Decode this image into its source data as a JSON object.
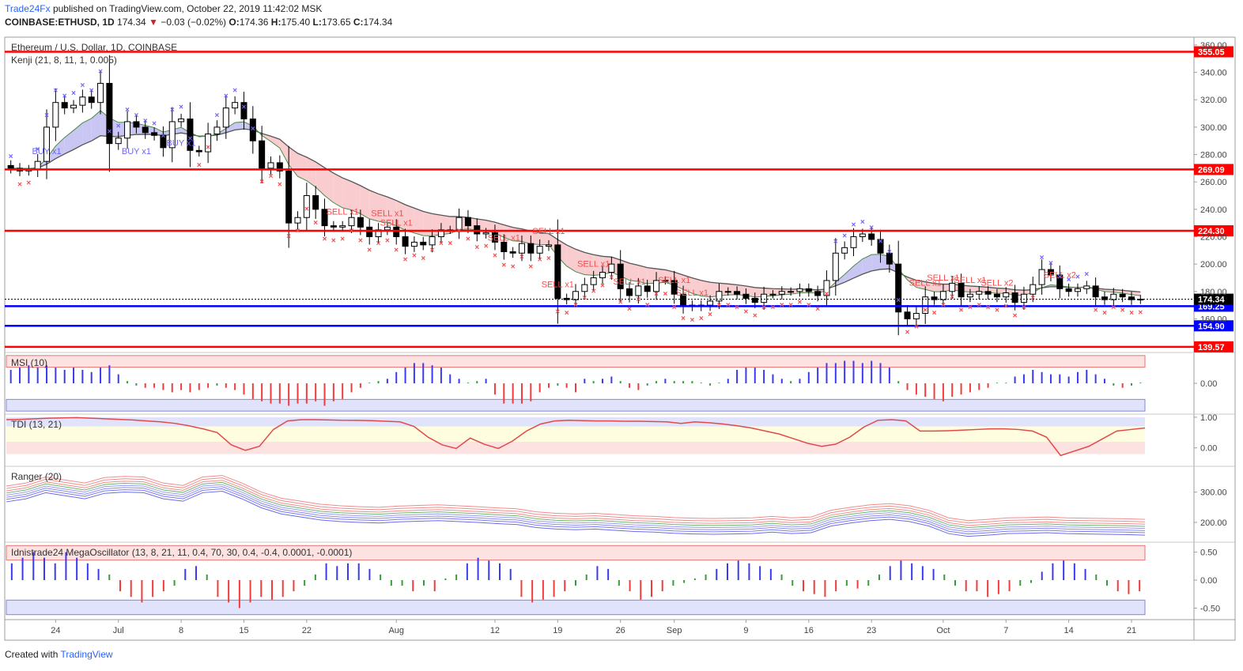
{
  "header": {
    "brand": "Trade24Fx",
    "published": "published on TradingView.com, October 22, 2019 11:42:02 MSK",
    "symbol": "COINBASE:ETHUSD, 1D",
    "last": "174.34",
    "change": "−0.03 (−0.02%)",
    "o_label": "O:",
    "o": "174.36",
    "h_label": "H:",
    "h": "175.40",
    "l_label": "L:",
    "l": "173.65",
    "c_label": "C:",
    "c": "174.34"
  },
  "footer": {
    "created": "Created with",
    "brand": "TradingView"
  },
  "colors": {
    "bull": "#ffffff",
    "bear": "#000000",
    "red_level": "#ff0000",
    "blue_level": "#0000ff",
    "buy": "#6c63ff",
    "sell": "#f44b4b",
    "axis_text": "#444444"
  },
  "chart_data": [
    {
      "type": "candlestick",
      "title": "Ethereum / U.S. Dollar, 1D, COINBASE",
      "indicator_label": "Kenji (21, 8, 11, 1, 0.005)",
      "y_ticks": [
        160,
        180,
        200,
        220,
        240,
        260,
        280,
        300,
        320,
        340,
        360
      ],
      "ylim": [
        136,
        364
      ],
      "x_ticks": [
        {
          "label": "24",
          "i": 5
        },
        {
          "label": "Jul",
          "i": 12
        },
        {
          "label": "8",
          "i": 19
        },
        {
          "label": "15",
          "i": 26
        },
        {
          "label": "22",
          "i": 33
        },
        {
          "label": "Aug",
          "i": 43
        },
        {
          "label": "12",
          "i": 54
        },
        {
          "label": "19",
          "i": 61
        },
        {
          "label": "26",
          "i": 68
        },
        {
          "label": "Sep",
          "i": 74
        },
        {
          "label": "9",
          "i": 82
        },
        {
          "label": "16",
          "i": 89
        },
        {
          "label": "23",
          "i": 96
        },
        {
          "label": "Oct",
          "i": 104
        },
        {
          "label": "7",
          "i": 111
        },
        {
          "label": "14",
          "i": 118
        },
        {
          "label": "21",
          "i": 125
        }
      ],
      "levels": [
        {
          "value": 355.05,
          "label": "355.05",
          "color": "red"
        },
        {
          "value": 269.09,
          "label": "269.09",
          "color": "red"
        },
        {
          "value": 224.3,
          "label": "224.30",
          "color": "red"
        },
        {
          "value": 169.25,
          "label": "169.25",
          "color": "blue"
        },
        {
          "value": 154.9,
          "label": "154.90",
          "color": "blue"
        },
        {
          "value": 139.57,
          "label": "139.57",
          "color": "red"
        }
      ],
      "last_price_label": "174.34",
      "closes": [
        270,
        268,
        269,
        275,
        300,
        318,
        314,
        316,
        322,
        318,
        332,
        288,
        292,
        304,
        300,
        296,
        294,
        285,
        304,
        306,
        283,
        282,
        295,
        300,
        314,
        318,
        306,
        290,
        270,
        274,
        268,
        230,
        234,
        250,
        240,
        228,
        227,
        228,
        234,
        227,
        220,
        225,
        227,
        220,
        213,
        216,
        214,
        220,
        225,
        225,
        234,
        228,
        222,
        223,
        216,
        209,
        208,
        215,
        208,
        213,
        214,
        175,
        174,
        180,
        185,
        190,
        194,
        200,
        182,
        177,
        184,
        180,
        188,
        188,
        178,
        170,
        169,
        170,
        173,
        180,
        180,
        178,
        175,
        172,
        178,
        178,
        180,
        180,
        182,
        180,
        177,
        188,
        208,
        212,
        220,
        222,
        218,
        208,
        200,
        165,
        160,
        164,
        176,
        174,
        180,
        186,
        176,
        178,
        180,
        178,
        176,
        179,
        172,
        178,
        185,
        196,
        192,
        182,
        180,
        182,
        184,
        176,
        174,
        178,
        176,
        174,
        174.34
      ],
      "annotations": [
        {
          "text": "BUY x1",
          "i": 4
        },
        {
          "text": "BUY x1",
          "i": 14
        },
        {
          "text": "BUY x1",
          "i": 19
        },
        {
          "text": "SELL x1",
          "i": 37
        },
        {
          "text": "SELL x1",
          "i": 42
        },
        {
          "text": "SELL x1",
          "i": 43
        },
        {
          "text": "SELL x1",
          "i": 55
        },
        {
          "text": "SELL x1",
          "i": 60
        },
        {
          "text": "SELL x1",
          "i": 61
        },
        {
          "text": "SELL x1",
          "i": 65
        },
        {
          "text": "SELL x1",
          "i": 69
        },
        {
          "text": "SELL x1",
          "i": 74
        },
        {
          "text": "SELL x1",
          "i": 76
        },
        {
          "text": "SELL x1",
          "i": 102
        },
        {
          "text": "SELL x1",
          "i": 104
        },
        {
          "text": "SELL x1",
          "i": 107
        },
        {
          "text": "SELL x2",
          "i": 110
        },
        {
          "text": "SELL x2",
          "i": 117
        }
      ]
    },
    {
      "type": "bar",
      "title": "MSI (10)",
      "y_ticks": [
        0
      ],
      "tick_labels": [
        "0.00"
      ],
      "ylim": [
        -1.3,
        1.3
      ],
      "values": [
        0.6,
        0.7,
        0.8,
        0.7,
        0.8,
        0.7,
        0.6,
        0.7,
        0.6,
        0.5,
        0.7,
        0.8,
        0.4,
        0.1,
        -0.1,
        -0.2,
        -0.2,
        -0.3,
        -0.4,
        -0.3,
        -0.4,
        -0.3,
        -0.2,
        -0.1,
        -0.2,
        -0.3,
        -0.5,
        -0.7,
        -0.8,
        -0.9,
        -0.9,
        -1.0,
        -0.9,
        -0.9,
        -0.8,
        -1.0,
        -0.8,
        -0.7,
        -0.4,
        -0.2,
        0,
        0.1,
        0.2,
        0.5,
        0.7,
        0.9,
        0.9,
        0.8,
        0.7,
        0.4,
        0.2,
        0,
        0.1,
        0.2,
        -0.5,
        -0.9,
        -0.9,
        -0.9,
        -0.8,
        -0.4,
        -0.2,
        -0.1,
        -0.2,
        -0.4,
        0.2,
        0.1,
        0.2,
        0.3,
        0.1,
        -0.2,
        -0.3,
        -0.1,
        0.1,
        0.2,
        0.1,
        0.1,
        0.1,
        0.0,
        -0.1,
        0,
        0.2,
        0.6,
        0.7,
        0.7,
        0.6,
        0.4,
        0.2,
        0.1,
        0.2,
        0.5,
        0.7,
        0.9,
        0.9,
        1.0,
        1.0,
        0.9,
        1.0,
        0.9,
        0.7,
        0.1,
        -0.3,
        -0.5,
        -0.6,
        -0.7,
        -0.8,
        -0.6,
        -0.5,
        -0.4,
        -0.3,
        -0.2,
        0,
        0,
        0.3,
        0.4,
        0.6,
        0.5,
        0.4,
        0.4,
        0.3,
        0.5,
        0.6,
        0.4,
        0.2,
        -0.1,
        -0.2,
        -0.1,
        0
      ]
    },
    {
      "type": "line",
      "title": "TDI (13, 21)",
      "y_ticks": [
        0,
        1
      ],
      "tick_labels": [
        "0.00",
        "1.00"
      ],
      "ylim": [
        -0.55,
        1.05
      ],
      "values": [
        0.92,
        0.93,
        0.95,
        0.97,
        0.98,
        0.99,
        0.97,
        0.95,
        0.93,
        0.91,
        0.88,
        0.85,
        0.8,
        0.72,
        0.62,
        0.5,
        0.1,
        -0.08,
        0.05,
        0.6,
        0.88,
        0.92,
        0.92,
        0.91,
        0.9,
        0.9,
        0.89,
        0.87,
        0.85,
        0.7,
        0.35,
        0.1,
        -0.02,
        0.32,
        0.12,
        -0.02,
        0.22,
        0.55,
        0.78,
        0.88,
        0.9,
        0.89,
        0.88,
        0.88,
        0.87,
        0.87,
        0.86,
        0.85,
        0.8,
        0.85,
        0.82,
        0.78,
        0.72,
        0.65,
        0.55,
        0.45,
        0.3,
        0.15,
        0.05,
        0.12,
        0.35,
        0.68,
        0.9,
        0.92,
        0.88,
        0.55,
        0.55,
        0.56,
        0.58,
        0.6,
        0.62,
        0.62,
        0.6,
        0.55,
        0.35,
        -0.25,
        -0.1,
        0.05,
        0.3,
        0.55,
        0.6,
        0.65
      ]
    },
    {
      "type": "line",
      "title": "Ranger (20)",
      "y_ticks": [
        200,
        300
      ],
      "tick_labels": [
        "200.00",
        "300.00"
      ],
      "ylim": [
        140,
        380
      ],
      "values": [
        290,
        300,
        320,
        310,
        300,
        318,
        322,
        320,
        300,
        292,
        320,
        325,
        300,
        270,
        250,
        240,
        230,
        225,
        222,
        220,
        224,
        226,
        228,
        225,
        222,
        218,
        215,
        205,
        200,
        198,
        200,
        196,
        192,
        190,
        186,
        184,
        183,
        184,
        185,
        190,
        185,
        188,
        210,
        220,
        228,
        232,
        225,
        210,
        185,
        176,
        180,
        185,
        186,
        188,
        185,
        184,
        183,
        182,
        180
      ]
    },
    {
      "type": "bar",
      "title": "Idnistrade24 MegaOscillator (13, 8, 21, 11, 0.4, 70, 30, 0.4, -0.4, 0.0001, -0.0001)",
      "y_ticks": [
        0.5,
        0,
        -0.5
      ],
      "tick_labels": [
        "0.50",
        "0.00",
        "-0.50"
      ],
      "ylim": [
        -0.65,
        0.65
      ],
      "values": [
        0.3,
        0.4,
        0.5,
        0.4,
        0.3,
        0.5,
        0.4,
        0.3,
        0.2,
        0.1,
        -0.2,
        -0.3,
        -0.4,
        -0.3,
        -0.2,
        -0.1,
        0.2,
        0.25,
        0.1,
        -0.3,
        -0.4,
        -0.5,
        -0.4,
        -0.3,
        -0.35,
        -0.3,
        -0.2,
        -0.1,
        0.1,
        0.3,
        0.25,
        0.3,
        0.3,
        0.2,
        0.1,
        -0.1,
        -0.1,
        -0.2,
        -0.1,
        -0.2,
        0,
        0.1,
        0.3,
        0.4,
        0.35,
        0.3,
        0.2,
        -0.3,
        -0.4,
        -0.35,
        -0.3,
        -0.2,
        -0.1,
        0.1,
        0.25,
        0.2,
        -0.1,
        -0.2,
        -0.35,
        -0.3,
        -0.2,
        -0.1,
        -0.05,
        0,
        0.1,
        0.2,
        0.3,
        0.35,
        0.3,
        0.25,
        0.2,
        0.1,
        -0.1,
        -0.2,
        -0.25,
        -0.3,
        -0.2,
        -0.1,
        -0.15,
        -0.1,
        0.1,
        0.25,
        0.35,
        0.3,
        0.25,
        0.2,
        0.1,
        -0.1,
        -0.2,
        -0.2,
        -0.3,
        -0.25,
        -0.2,
        -0.1,
        -0.05,
        0.15,
        0.3,
        0.35,
        0.3,
        0.2,
        0.1,
        -0.1,
        -0.2,
        -0.25,
        -0.2
      ]
    }
  ]
}
